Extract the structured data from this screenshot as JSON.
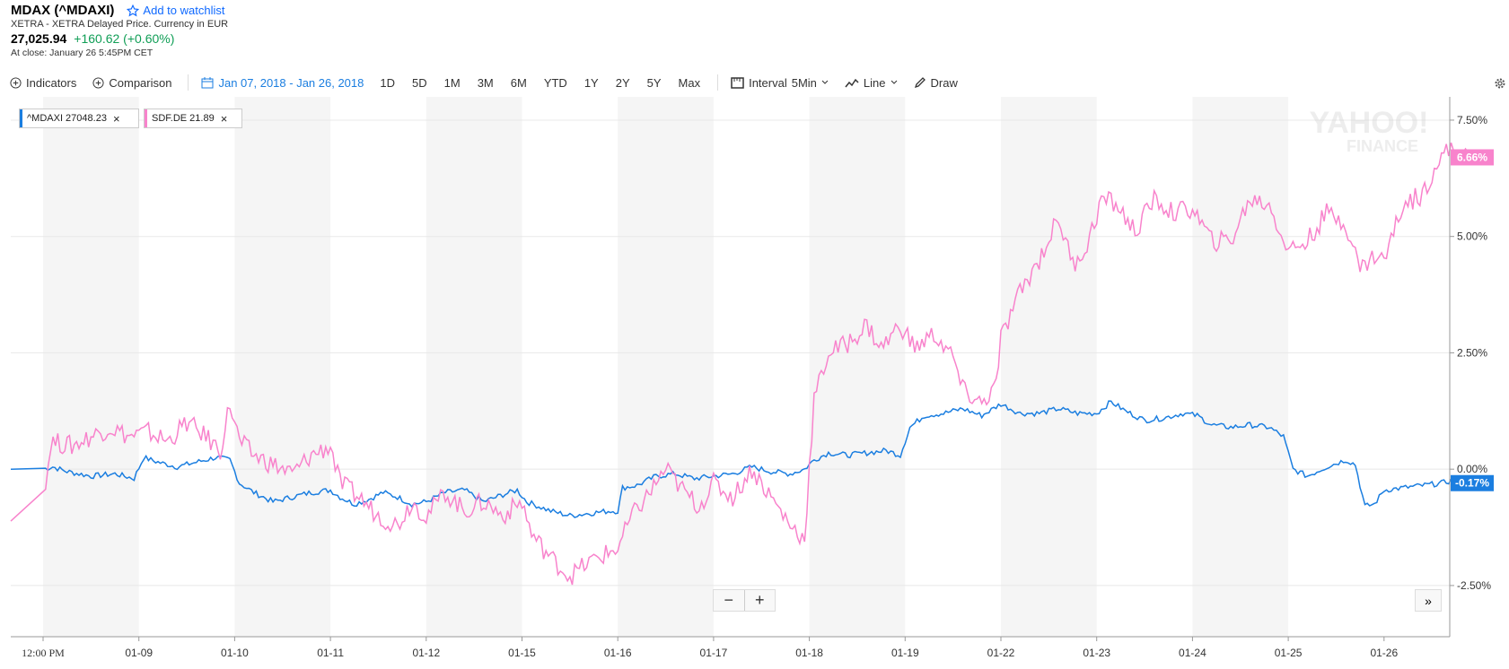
{
  "header": {
    "ticker": "MDAX (^MDAXI)",
    "watchlist_label": "Add to watchlist",
    "exchange": "XETRA - XETRA Delayed Price. Currency in EUR",
    "price": "27,025.94",
    "change": "+160.62 (+0.60%)",
    "close_time": "At close: January 26 5:45PM CET"
  },
  "toolbar": {
    "indicators": "Indicators",
    "comparison": "Comparison",
    "date_range": "Jan 07, 2018 - Jan 26, 2018",
    "ranges": [
      "1D",
      "5D",
      "1M",
      "3M",
      "6M",
      "YTD",
      "1Y",
      "2Y",
      "5Y",
      "Max"
    ],
    "interval_label": "Interval",
    "interval_value": "5Min",
    "chart_type": "Line",
    "draw": "Draw"
  },
  "legend": [
    {
      "label": "^MDAXI  27048.23",
      "color": "#1b7ee0"
    },
    {
      "label": "SDF.DE  21.89",
      "color": "#f883cc"
    }
  ],
  "watermark": {
    "line1": "YAHOO!",
    "line2": "FINANCE"
  },
  "zoom": {
    "minus": "−",
    "plus": "+"
  },
  "expand": "»",
  "chart_data": {
    "type": "line",
    "title": "",
    "x_labels": [
      "12:00 PM",
      "01-09",
      "01-10",
      "01-11",
      "01-12",
      "01-15",
      "01-16",
      "01-17",
      "01-18",
      "01-19",
      "01-22",
      "01-23",
      "01-24",
      "01-25",
      "01-26"
    ],
    "y_ticks": [
      "7.50%",
      "5.00%",
      "2.50%",
      "0.00%",
      "-2.50%"
    ],
    "ylim": [
      -3.6,
      8.0
    ],
    "y_unit": "%",
    "series": [
      {
        "name": "^MDAXI",
        "color": "#1b7ee0",
        "last_label": "-0.17%",
        "points": [
          [
            0,
            0.0
          ],
          [
            0.1,
            0.05
          ],
          [
            0.25,
            -0.05
          ],
          [
            0.5,
            -0.15
          ],
          [
            0.75,
            -0.1
          ],
          [
            0.95,
            -0.2
          ],
          [
            1.05,
            0.25
          ],
          [
            1.2,
            0.15
          ],
          [
            1.4,
            0.05
          ],
          [
            1.6,
            0.15
          ],
          [
            1.8,
            0.25
          ],
          [
            1.95,
            0.2
          ],
          [
            2.05,
            -0.3
          ],
          [
            2.2,
            -0.5
          ],
          [
            2.3,
            -0.6
          ],
          [
            2.4,
            -0.7
          ],
          [
            2.6,
            -0.6
          ],
          [
            2.8,
            -0.5
          ],
          [
            3.0,
            -0.45
          ],
          [
            3.1,
            -0.6
          ],
          [
            3.25,
            -0.75
          ],
          [
            3.4,
            -0.65
          ],
          [
            3.55,
            -0.5
          ],
          [
            3.7,
            -0.6
          ],
          [
            3.85,
            -0.75
          ],
          [
            4.0,
            -0.7
          ],
          [
            4.2,
            -0.5
          ],
          [
            4.4,
            -0.45
          ],
          [
            4.6,
            -0.7
          ],
          [
            4.8,
            -0.55
          ],
          [
            4.95,
            -0.45
          ],
          [
            5.05,
            -0.7
          ],
          [
            5.3,
            -0.9
          ],
          [
            5.5,
            -1.0
          ],
          [
            5.7,
            -0.95
          ],
          [
            5.9,
            -0.9
          ],
          [
            6.0,
            -0.9
          ],
          [
            6.05,
            -0.4
          ],
          [
            6.2,
            -0.35
          ],
          [
            6.4,
            -0.15
          ],
          [
            6.6,
            -0.1
          ],
          [
            6.8,
            -0.2
          ],
          [
            7.0,
            -0.15
          ],
          [
            7.2,
            -0.1
          ],
          [
            7.4,
            0.05
          ],
          [
            7.6,
            -0.05
          ],
          [
            7.8,
            -0.1
          ],
          [
            7.95,
            0.0
          ],
          [
            8.05,
            0.2
          ],
          [
            8.2,
            0.35
          ],
          [
            8.4,
            0.3
          ],
          [
            8.6,
            0.35
          ],
          [
            8.8,
            0.4
          ],
          [
            8.95,
            0.3
          ],
          [
            9.05,
            0.9
          ],
          [
            9.2,
            1.15
          ],
          [
            9.4,
            1.2
          ],
          [
            9.6,
            1.3
          ],
          [
            9.8,
            1.15
          ],
          [
            10.0,
            1.4
          ],
          [
            10.2,
            1.2
          ],
          [
            10.4,
            1.2
          ],
          [
            10.6,
            1.3
          ],
          [
            10.8,
            1.2
          ],
          [
            11.0,
            1.2
          ],
          [
            11.15,
            1.45
          ],
          [
            11.3,
            1.25
          ],
          [
            11.5,
            1.05
          ],
          [
            11.7,
            1.1
          ],
          [
            11.9,
            1.2
          ],
          [
            12.05,
            1.15
          ],
          [
            12.2,
            0.95
          ],
          [
            12.4,
            0.9
          ],
          [
            12.6,
            0.95
          ],
          [
            12.8,
            0.9
          ],
          [
            12.95,
            0.7
          ],
          [
            13.05,
            0.0
          ],
          [
            13.2,
            -0.15
          ],
          [
            13.4,
            0.05
          ],
          [
            13.6,
            0.2
          ],
          [
            13.7,
            0.1
          ],
          [
            13.8,
            -0.8
          ],
          [
            13.9,
            -0.75
          ],
          [
            14.0,
            -0.45
          ],
          [
            14.2,
            -0.4
          ],
          [
            14.4,
            -0.35
          ],
          [
            14.6,
            -0.3
          ],
          [
            14.8,
            -0.2
          ],
          [
            14.95,
            -0.3
          ]
        ]
      },
      {
        "name": "SDF.DE",
        "color": "#f883cc",
        "last_label": "6.66%",
        "points": [
          [
            0,
            -0.9
          ],
          [
            0.08,
            0.6
          ],
          [
            0.3,
            0.5
          ],
          [
            0.5,
            0.7
          ],
          [
            0.7,
            0.9
          ],
          [
            0.9,
            0.7
          ],
          [
            1.1,
            0.8
          ],
          [
            1.3,
            0.6
          ],
          [
            1.5,
            1.0
          ],
          [
            1.7,
            0.7
          ],
          [
            1.85,
            0.4
          ],
          [
            1.95,
            1.4
          ],
          [
            2.05,
            0.6
          ],
          [
            2.2,
            0.3
          ],
          [
            2.4,
            0.1
          ],
          [
            2.6,
            -0.1
          ],
          [
            2.8,
            0.3
          ],
          [
            3.0,
            0.5
          ],
          [
            3.1,
            -0.3
          ],
          [
            3.3,
            -0.6
          ],
          [
            3.5,
            -1.0
          ],
          [
            3.7,
            -1.2
          ],
          [
            3.85,
            -0.7
          ],
          [
            4.0,
            -1.0
          ],
          [
            4.2,
            -0.5
          ],
          [
            4.4,
            -0.9
          ],
          [
            4.6,
            -0.7
          ],
          [
            4.8,
            -1.0
          ],
          [
            5.0,
            -0.7
          ],
          [
            5.1,
            -1.4
          ],
          [
            5.3,
            -1.9
          ],
          [
            5.5,
            -2.3
          ],
          [
            5.7,
            -2.0
          ],
          [
            5.9,
            -1.8
          ],
          [
            6.0,
            -1.7
          ],
          [
            6.15,
            -1.0
          ],
          [
            6.3,
            -0.6
          ],
          [
            6.5,
            0.0
          ],
          [
            6.7,
            -0.5
          ],
          [
            6.85,
            -0.8
          ],
          [
            7.0,
            -0.3
          ],
          [
            7.2,
            -0.6
          ],
          [
            7.4,
            0.0
          ],
          [
            7.6,
            -0.6
          ],
          [
            7.8,
            -1.2
          ],
          [
            7.95,
            -1.5
          ],
          [
            8.05,
            1.5
          ],
          [
            8.2,
            2.5
          ],
          [
            8.4,
            2.7
          ],
          [
            8.6,
            3.1
          ],
          [
            8.75,
            2.6
          ],
          [
            8.95,
            3.1
          ],
          [
            9.1,
            2.6
          ],
          [
            9.3,
            2.9
          ],
          [
            9.5,
            2.4
          ],
          [
            9.6,
            1.7
          ],
          [
            9.8,
            1.4
          ],
          [
            9.95,
            1.8
          ],
          [
            10.0,
            2.8
          ],
          [
            10.2,
            3.8
          ],
          [
            10.4,
            4.5
          ],
          [
            10.6,
            5.4
          ],
          [
            10.75,
            4.4
          ],
          [
            10.9,
            4.8
          ],
          [
            11.05,
            5.8
          ],
          [
            11.2,
            5.7
          ],
          [
            11.4,
            5.1
          ],
          [
            11.6,
            5.8
          ],
          [
            11.8,
            5.5
          ],
          [
            12.0,
            5.6
          ],
          [
            12.2,
            4.9
          ],
          [
            12.4,
            4.9
          ],
          [
            12.6,
            5.8
          ],
          [
            12.8,
            5.7
          ],
          [
            13.0,
            4.7
          ],
          [
            13.2,
            4.9
          ],
          [
            13.4,
            5.5
          ],
          [
            13.6,
            5.3
          ],
          [
            13.75,
            4.3
          ],
          [
            13.9,
            4.6
          ],
          [
            14.0,
            4.5
          ],
          [
            14.2,
            5.7
          ],
          [
            14.4,
            5.9
          ],
          [
            14.55,
            6.6
          ],
          [
            14.7,
            6.9
          ],
          [
            14.85,
            6.7
          ],
          [
            14.95,
            6.7
          ]
        ]
      }
    ]
  }
}
